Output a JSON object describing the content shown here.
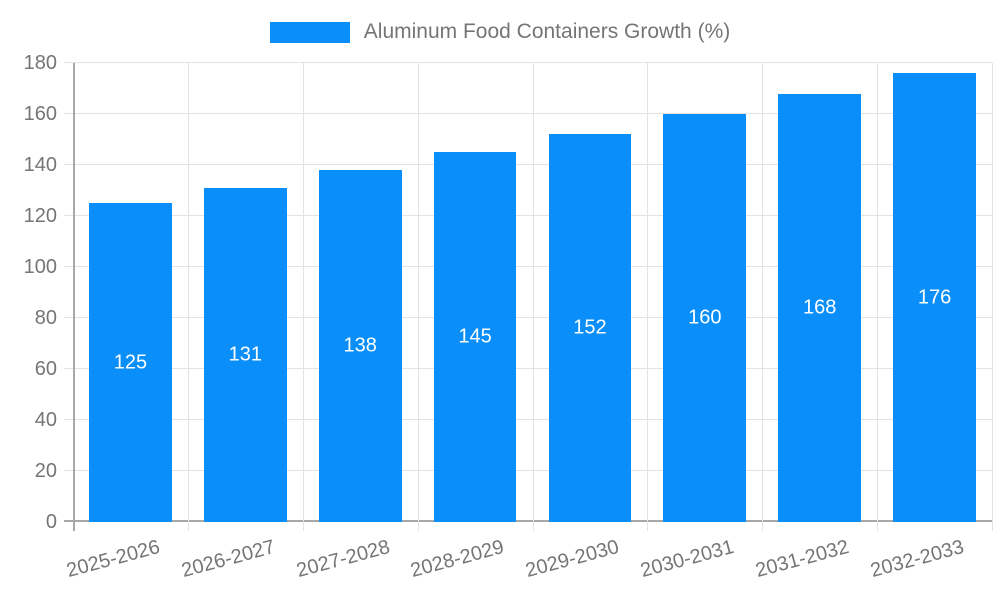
{
  "chart_data": {
    "type": "bar",
    "title": "Aluminum Food Containers Growth (%)",
    "legend": {
      "label": "Aluminum Food Containers Growth (%)",
      "position": "top"
    },
    "categories": [
      "2025-2026",
      "2026-2027",
      "2027-2028",
      "2028-2029",
      "2029-2030",
      "2030-2031",
      "2031-2032",
      "2032-2033"
    ],
    "values": [
      125,
      131,
      138,
      145,
      152,
      160,
      168,
      176
    ],
    "value_labels": [
      "125",
      "131",
      "138",
      "145",
      "152",
      "160",
      "168",
      "176"
    ],
    "xlabel": "",
    "ylabel": "",
    "ylim": [
      0,
      180
    ],
    "ytick_step": 20,
    "yticks": [
      "0",
      "20",
      "40",
      "60",
      "80",
      "100",
      "120",
      "140",
      "160",
      "180"
    ],
    "grid": true,
    "colors": {
      "bar": "#0a8ef9",
      "bar_value_text": "#ffffff",
      "axis_line": "#a8a8a8",
      "gridline": "#e3e3e3",
      "tick_text": "#757575",
      "legend_text": "#757575",
      "background": "#ffffff"
    }
  }
}
